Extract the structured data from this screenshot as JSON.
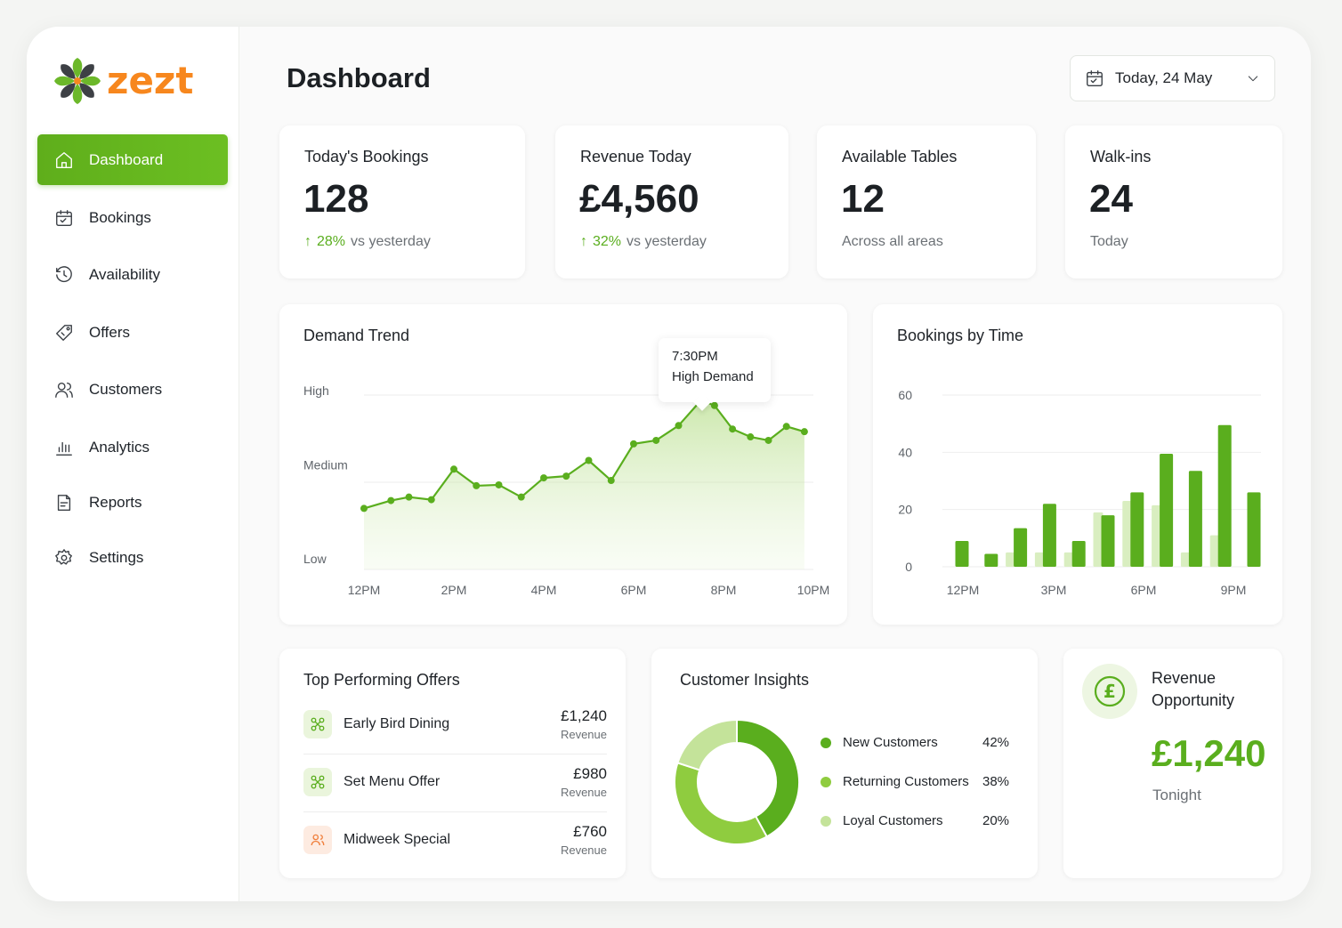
{
  "brand": {
    "name": "zezt",
    "accent": "#f7871e"
  },
  "colors": {
    "primary": "#5fae1b",
    "light": "#a8d86a",
    "lighter": "#d4ecb0",
    "offer_orange": "#f07f3c"
  },
  "sidebar": {
    "items": [
      {
        "label": "Dashboard",
        "icon": "home-icon",
        "active": true
      },
      {
        "label": "Bookings",
        "icon": "calendar-icon"
      },
      {
        "label": "Availability",
        "icon": "clock-icon"
      },
      {
        "label": "Offers",
        "icon": "tag-icon"
      },
      {
        "label": "Customers",
        "icon": "users-icon"
      },
      {
        "label": "Analytics",
        "icon": "bar-chart-icon"
      },
      {
        "label": "Reports",
        "icon": "report-icon"
      },
      {
        "label": "Settings",
        "icon": "gear-icon"
      }
    ]
  },
  "header": {
    "title": "Dashboard",
    "date_label": "Today, 24 May"
  },
  "stats": [
    {
      "title": "Today's Bookings",
      "value": "128",
      "change": "28%",
      "change_suffix": "vs yesterday"
    },
    {
      "title": "Revenue Today",
      "value": "£4,560",
      "change": "32%",
      "change_suffix": "vs yesterday"
    },
    {
      "title": "Available Tables",
      "value": "12",
      "sub": "Across all areas"
    },
    {
      "title": "Walk-ins",
      "value": "24",
      "sub": "Today"
    }
  ],
  "demand": {
    "title": "Demand Trend",
    "tooltip_time": "7:30PM",
    "tooltip_label": "High Demand"
  },
  "bookings_by_time": {
    "title": "Bookings by Time"
  },
  "chart_data": [
    {
      "type": "area",
      "title": "Demand Trend",
      "y_tick_labels": [
        "High",
        "Medium",
        "Low"
      ],
      "x_tick_labels": [
        "12PM",
        "2PM",
        "4PM",
        "6PM",
        "8PM",
        "10PM"
      ],
      "xlim": [
        12,
        22
      ],
      "ylim": [
        0,
        2
      ],
      "x": [
        12,
        12.6,
        13,
        13.5,
        14,
        14.5,
        15,
        15.5,
        16,
        16.5,
        17,
        17.5,
        18,
        18.5,
        19,
        19.5,
        19.8,
        20.2,
        20.6,
        21,
        21.4,
        21.8
      ],
      "y": [
        0.7,
        0.79,
        0.83,
        0.8,
        1.15,
        0.96,
        0.97,
        0.83,
        1.05,
        1.07,
        1.25,
        1.02,
        1.44,
        1.48,
        1.65,
        1.94,
        1.88,
        1.61,
        1.52,
        1.48,
        1.64,
        1.58
      ],
      "highlight_x": 19.5
    },
    {
      "type": "bar",
      "title": "Bookings by Time",
      "x_tick_labels": [
        "12PM",
        "3PM",
        "6PM",
        "9PM"
      ],
      "ylim": [
        0,
        60
      ],
      "yticks": [
        60,
        40,
        20,
        0
      ],
      "series": [
        {
          "values": [
            9,
            4.5,
            13.5,
            22,
            9,
            18,
            26,
            39.5,
            33.5,
            49.5,
            26
          ]
        },
        {
          "values": [
            0,
            0,
            5,
            5,
            5,
            19,
            23,
            21.5,
            5,
            11,
            0
          ]
        }
      ],
      "grid": true
    },
    {
      "type": "pie",
      "title": "Customer Insights",
      "slices": [
        {
          "label": "New Customers",
          "value": 42
        },
        {
          "label": "Returning Customers",
          "value": 38
        },
        {
          "label": "Loyal Customers",
          "value": 20
        }
      ]
    }
  ],
  "offers": {
    "title": "Top Performing Offers",
    "items": [
      {
        "name": "Early Bird Dining",
        "amount": "£1,240",
        "caption": "Revenue",
        "icon": "offer-link-icon"
      },
      {
        "name": "Set Menu Offer",
        "amount": "£980",
        "caption": "Revenue",
        "icon": "offer-link-icon"
      },
      {
        "name": "Midweek Special",
        "amount": "£760",
        "caption": "Revenue",
        "icon": "people-icon"
      }
    ]
  },
  "insights": {
    "title": "Customer Insights",
    "legend": [
      {
        "label": "New Customers",
        "pct": "42%",
        "color": "#5aae1e"
      },
      {
        "label": "Returning Customers",
        "pct": "38%",
        "color": "#8fcc3f"
      },
      {
        "label": "Loyal Customers",
        "pct": "20%",
        "color": "#c4e39a"
      }
    ]
  },
  "opportunity": {
    "title_line1": "Revenue",
    "title_line2": "Opportunity",
    "value": "£1,240",
    "sub": "Tonight",
    "icon": "pound-icon"
  }
}
